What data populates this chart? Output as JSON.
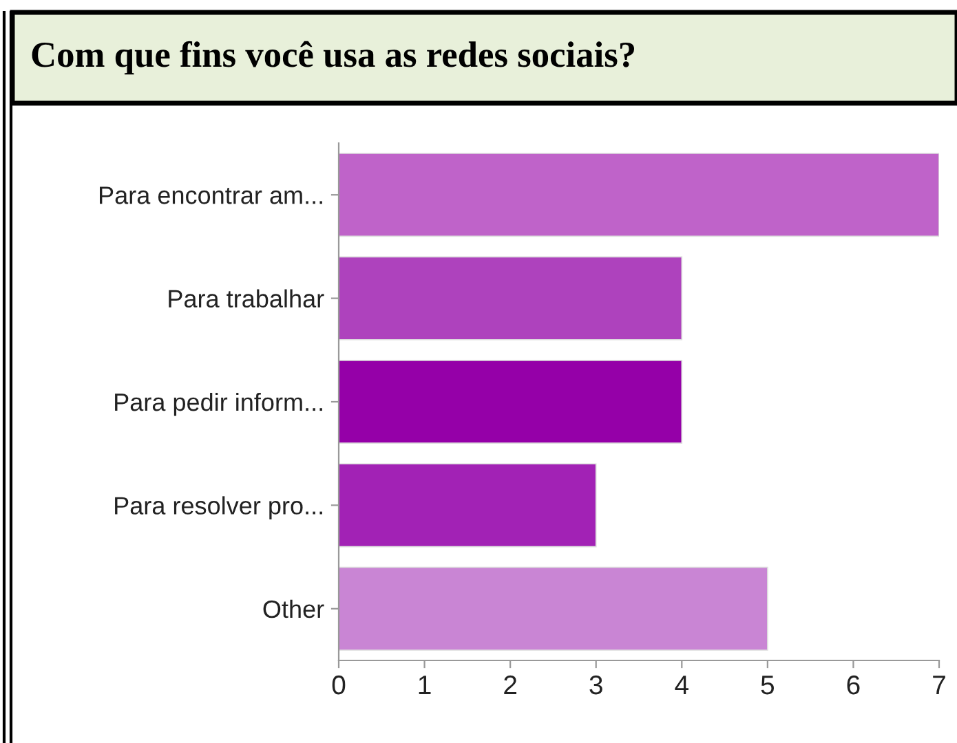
{
  "chart_data": {
    "type": "bar",
    "orientation": "horizontal",
    "title": "Com que fins você usa as redes sociais?",
    "categories": [
      "Para encontrar am...",
      "Para trabalhar",
      "Para pedir inform...",
      "Para resolver pro...",
      "Other"
    ],
    "values": [
      7,
      4,
      4,
      3,
      5
    ],
    "colors": [
      "#bf63c9",
      "#ae42bd",
      "#9500a8",
      "#a222b5",
      "#c985d4"
    ],
    "xlim": [
      0,
      7
    ],
    "xticks": [
      0,
      1,
      2,
      3,
      4,
      5,
      6,
      7
    ],
    "grid": false,
    "legend": false
  }
}
